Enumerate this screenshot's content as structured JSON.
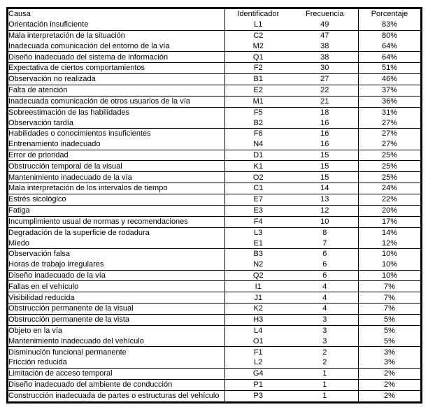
{
  "colors": {
    "background": "#ffffff",
    "text": "#000000",
    "border": "#000000"
  },
  "table": {
    "columns": [
      "Causa",
      "Identificador",
      "Frecuencia",
      "Porcentaje"
    ],
    "rows": [
      {
        "causa": "Orientación insuficiente",
        "id": "L1",
        "freq": "49",
        "pct": "83%",
        "line_below": true
      },
      {
        "causa": "Mala interpretación de la situación",
        "id": "C2",
        "freq": "47",
        "pct": "80%",
        "line_below": false
      },
      {
        "causa": "Inadecuada comunicación del entorno de la vía",
        "id": "M2",
        "freq": "38",
        "pct": "64%",
        "line_below": true
      },
      {
        "causa": "Diseño inadecuado del sistema de información",
        "id": "Q1",
        "freq": "38",
        "pct": "64%",
        "line_below": true
      },
      {
        "causa": "Expectativa de ciertos comportamientos",
        "id": "F2",
        "freq": "30",
        "pct": "51%",
        "line_below": true
      },
      {
        "causa": "Observación no realizada",
        "id": "B1",
        "freq": "27",
        "pct": "46%",
        "line_below": true
      },
      {
        "causa": "Falta de atención",
        "id": "E2",
        "freq": "22",
        "pct": "37%",
        "line_below": true
      },
      {
        "causa": "Inadecuada comunicación de otros usuarios de la vía",
        "id": "M1",
        "freq": "21",
        "pct": "36%",
        "line_below": true
      },
      {
        "causa": "Sobreestimación de las habilidades",
        "id": "F5",
        "freq": "18",
        "pct": "31%",
        "line_below": false
      },
      {
        "causa": "Observación tardía",
        "id": "B2",
        "freq": "16",
        "pct": "27%",
        "line_below": true
      },
      {
        "causa": "Habilidades o conocimientos insuficientes",
        "id": "F6",
        "freq": "16",
        "pct": "27%",
        "line_below": false
      },
      {
        "causa": "Entrenamiento inadecuado",
        "id": "N4",
        "freq": "16",
        "pct": "27%",
        "line_below": true
      },
      {
        "causa": "Error de prioridad",
        "id": "D1",
        "freq": "15",
        "pct": "25%",
        "line_below": true
      },
      {
        "causa": "Obstrucción temporal de la visual",
        "id": "K1",
        "freq": "15",
        "pct": "25%",
        "line_below": true
      },
      {
        "causa": "Mantenimiento inadecuado de la vía",
        "id": "O2",
        "freq": "15",
        "pct": "25%",
        "line_below": true
      },
      {
        "causa": "Mala interpretación de los intervalos de tiempo",
        "id": "C1",
        "freq": "14",
        "pct": "24%",
        "line_below": true
      },
      {
        "causa": "Estrés sicológico",
        "id": "E7",
        "freq": "13",
        "pct": "22%",
        "line_below": true
      },
      {
        "causa": "Fatiga",
        "id": "E3",
        "freq": "12",
        "pct": "20%",
        "line_below": true
      },
      {
        "causa": "Incumplimiento usual de normas y recomendaciones",
        "id": "F4",
        "freq": "10",
        "pct": "17%",
        "line_below": true
      },
      {
        "causa": "Degradación de la superficie de rodadura",
        "id": "L3",
        "freq": "8",
        "pct": "14%",
        "line_below": false
      },
      {
        "causa": "Miedo",
        "id": "E1",
        "freq": "7",
        "pct": "12%",
        "line_below": true
      },
      {
        "causa": "Observación falsa",
        "id": "B3",
        "freq": "6",
        "pct": "10%",
        "line_below": false
      },
      {
        "causa": "Horas de trabajo irregulares",
        "id": "N2",
        "freq": "6",
        "pct": "10%",
        "line_below": true
      },
      {
        "causa": "Diseño inadecuado de la vía",
        "id": "Q2",
        "freq": "6",
        "pct": "10%",
        "line_below": true
      },
      {
        "causa": "Fallas en el vehículo",
        "id": "I1",
        "freq": "4",
        "pct": "7%",
        "line_below": true
      },
      {
        "causa": "Visibilidad reducida",
        "id": "J1",
        "freq": "4",
        "pct": "7%",
        "line_below": true
      },
      {
        "causa": "Obstrucción permanente de la visual",
        "id": "K2",
        "freq": "4",
        "pct": "7%",
        "line_below": true
      },
      {
        "causa": "Obstrucción permanente de la vista",
        "id": "H3",
        "freq": "3",
        "pct": "5%",
        "line_below": true
      },
      {
        "causa": "Objeto en la vía",
        "id": "L4",
        "freq": "3",
        "pct": "5%",
        "line_below": false
      },
      {
        "causa": "Mantenimiento inadecuado del vehículo",
        "id": "O1",
        "freq": "3",
        "pct": "5%",
        "line_below": true
      },
      {
        "causa": "Disminución funcional permanente",
        "id": "F1",
        "freq": "2",
        "pct": "3%",
        "line_below": false
      },
      {
        "causa": "Fricción reducida",
        "id": "L2",
        "freq": "2",
        "pct": "3%",
        "line_below": true
      },
      {
        "causa": "Limitación de acceso temporal",
        "id": "G4",
        "freq": "1",
        "pct": "2%",
        "line_below": true
      },
      {
        "causa": "Diseño inadecuado del ambiente de conducción",
        "id": "P1",
        "freq": "1",
        "pct": "2%",
        "line_below": true
      },
      {
        "causa": "Construcción inadecuada de partes o estructuras del vehículo",
        "id": "P3",
        "freq": "1",
        "pct": "2%",
        "line_below": false
      }
    ]
  }
}
